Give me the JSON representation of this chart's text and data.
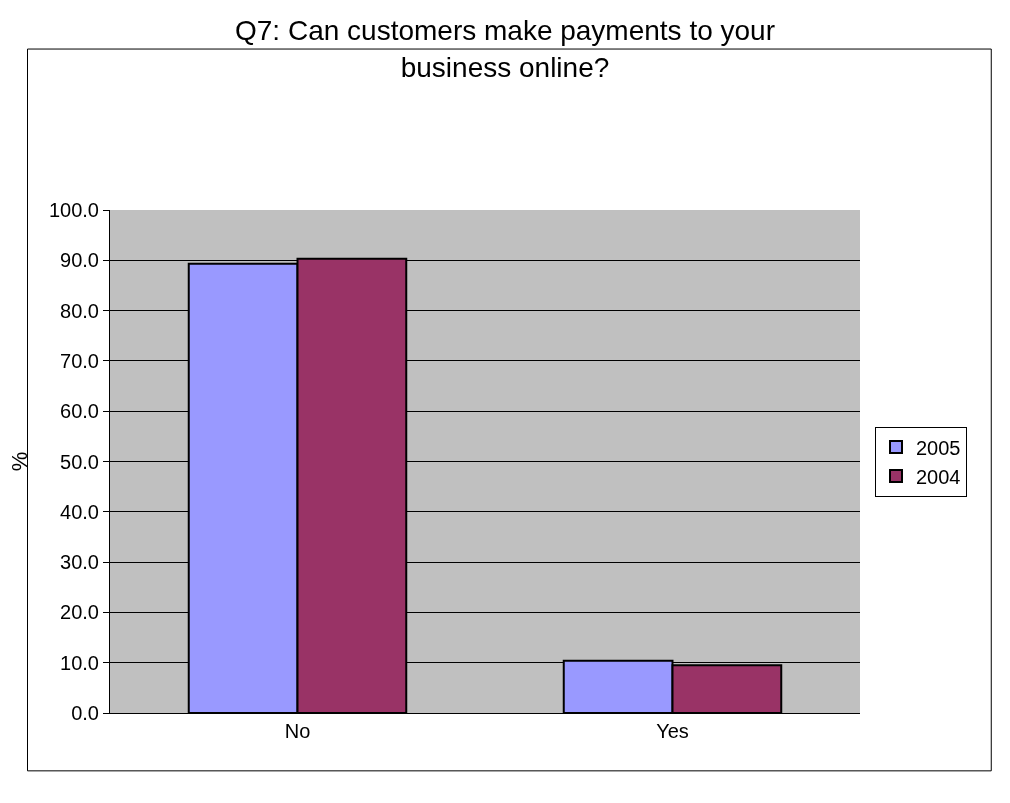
{
  "chart_data": {
    "type": "bar",
    "title": "Q7: Can customers make payments to your business online?",
    "ylabel": "%",
    "categories": [
      "No",
      "Yes"
    ],
    "series": [
      {
        "name": "2005",
        "color": "#9999ff",
        "values": [
          89.3,
          10.4
        ]
      },
      {
        "name": "2004",
        "color": "#993366",
        "values": [
          90.3,
          9.5
        ]
      }
    ],
    "ylim": [
      0,
      100
    ],
    "yticks": [
      {
        "value": 0,
        "label": "0.0"
      },
      {
        "value": 10,
        "label": "10.0"
      },
      {
        "value": 20,
        "label": "20.0"
      },
      {
        "value": 30,
        "label": "30.0"
      },
      {
        "value": 40,
        "label": "40.0"
      },
      {
        "value": 50,
        "label": "50.0"
      },
      {
        "value": 60,
        "label": "60.0"
      },
      {
        "value": 70,
        "label": "70.0"
      },
      {
        "value": 80,
        "label": "80.0"
      },
      {
        "value": 90,
        "label": "90.0"
      },
      {
        "value": 100,
        "label": "100.0"
      }
    ],
    "grid": "y",
    "legend": "right"
  }
}
